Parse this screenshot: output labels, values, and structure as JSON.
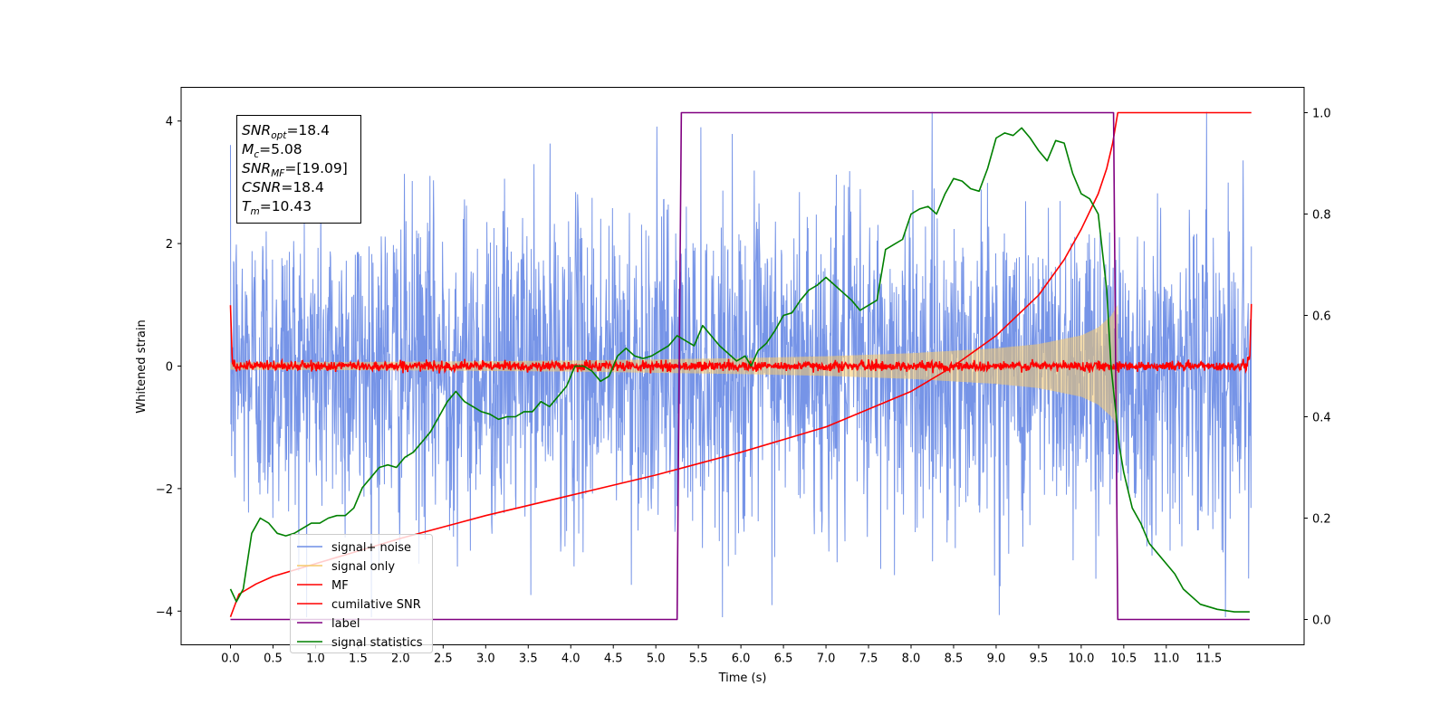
{
  "chart_data": {
    "type": "line",
    "xlabel": "Time (s)",
    "ylabel": "Whitened strain",
    "xlim": [
      -0.58,
      12.62
    ],
    "ylim": [
      -4.55,
      4.55
    ],
    "y2lim": [
      -0.05,
      1.05
    ],
    "x_ticks": [
      0.0,
      0.5,
      1.0,
      1.5,
      2.0,
      2.5,
      3.0,
      3.5,
      4.0,
      4.5,
      5.0,
      5.5,
      6.0,
      6.5,
      7.0,
      7.5,
      8.0,
      8.5,
      9.0,
      9.5,
      10.0,
      10.5,
      11.0,
      11.5
    ],
    "x_tick_labels": [
      "0.0",
      "0.5",
      "1.0",
      "1.5",
      "2.0",
      "2.5",
      "3.0",
      "3.5",
      "4.0",
      "4.5",
      "5.0",
      "5.5",
      "6.0",
      "6.5",
      "7.0",
      "7.5",
      "8.0",
      "8.5",
      "9.0",
      "9.5",
      "10.0",
      "10.5",
      "11.0",
      "11.5"
    ],
    "y_ticks": [
      -4,
      -2,
      0,
      2,
      4
    ],
    "y_tick_labels": [
      "−4",
      "−2",
      "0",
      "2",
      "4"
    ],
    "y2_ticks": [
      0.0,
      0.2,
      0.4,
      0.6,
      0.8,
      1.0
    ],
    "y2_tick_labels": [
      "0.0",
      "0.2",
      "0.4",
      "0.6",
      "0.8",
      "1.0"
    ],
    "legend_position": "lower-left",
    "grid": false,
    "annotation": [
      {
        "base": "SNR",
        "sub": "opt",
        "value": "=18.4"
      },
      {
        "base": "M",
        "sub": "c",
        "value": "=5.08"
      },
      {
        "base": "SNR",
        "sub": "MF",
        "value": "=[19.09]"
      },
      {
        "base": "CSNR",
        "sub": "",
        "value": "=18.4"
      },
      {
        "base": "T",
        "sub": "m",
        "value": "=10.43"
      }
    ],
    "series": [
      {
        "name": "signal+ noise",
        "axis": "left",
        "color": "#6f8ee6",
        "kind": "noise",
        "x_range": [
          0.0,
          12.0
        ],
        "amplitude_sigma": 1.0,
        "peak_range": [
          -4.1,
          4.15
        ]
      },
      {
        "name": "signal only",
        "axis": "left",
        "color": "#f5c96a",
        "kind": "chirp-envelope",
        "x": [
          0.0,
          2.0,
          4.0,
          6.0,
          7.0,
          8.0,
          9.0,
          9.5,
          10.0,
          10.2,
          10.35,
          10.43
        ],
        "envelope": [
          0.06,
          0.07,
          0.09,
          0.13,
          0.16,
          0.21,
          0.29,
          0.36,
          0.5,
          0.63,
          0.82,
          1.0
        ]
      },
      {
        "name": "MF",
        "axis": "left",
        "color": "#ff0000",
        "kind": "noisy-line",
        "x": [
          0.0,
          0.02,
          0.06,
          11.94,
          11.98,
          12.0
        ],
        "y": [
          1.0,
          0.15,
          0.0,
          0.0,
          0.15,
          0.95
        ]
      },
      {
        "name": "cumilative SNR",
        "axis": "right",
        "color": "#ff0000",
        "kind": "line",
        "x": [
          0.0,
          0.1,
          0.3,
          0.5,
          1.0,
          2.0,
          3.0,
          4.0,
          5.0,
          6.0,
          7.0,
          8.0,
          8.5,
          9.0,
          9.5,
          9.8,
          10.0,
          10.2,
          10.3,
          10.37,
          10.43,
          10.5,
          12.0
        ],
        "y": [
          0.005,
          0.05,
          0.07,
          0.085,
          0.11,
          0.16,
          0.205,
          0.245,
          0.285,
          0.33,
          0.38,
          0.45,
          0.5,
          0.56,
          0.64,
          0.71,
          0.77,
          0.84,
          0.89,
          0.94,
          1.0,
          1.0,
          1.0
        ]
      },
      {
        "name": "label",
        "axis": "right",
        "color": "#800080",
        "kind": "line",
        "x": [
          0.0,
          5.25,
          5.3,
          10.38,
          10.43,
          11.0,
          11.5,
          11.98
        ],
        "y": [
          0.0,
          0.0,
          1.0,
          1.0,
          0.0,
          0.0,
          0.0,
          0.0
        ]
      },
      {
        "name": "signal statistics",
        "axis": "right",
        "color": "#008000",
        "kind": "line",
        "x": [
          0.0,
          0.07,
          0.15,
          0.25,
          0.35,
          0.45,
          0.55,
          0.65,
          0.75,
          0.85,
          0.95,
          1.05,
          1.15,
          1.25,
          1.35,
          1.45,
          1.55,
          1.65,
          1.75,
          1.85,
          1.95,
          2.05,
          2.15,
          2.25,
          2.35,
          2.45,
          2.55,
          2.65,
          2.75,
          2.85,
          2.95,
          3.05,
          3.15,
          3.25,
          3.35,
          3.45,
          3.55,
          3.65,
          3.75,
          3.85,
          3.95,
          4.05,
          4.15,
          4.25,
          4.35,
          4.45,
          4.55,
          4.65,
          4.75,
          4.85,
          4.95,
          5.05,
          5.15,
          5.25,
          5.35,
          5.45,
          5.55,
          5.65,
          5.75,
          5.85,
          5.95,
          6.05,
          6.12,
          6.2,
          6.3,
          6.4,
          6.5,
          6.6,
          6.7,
          6.8,
          6.9,
          7.0,
          7.1,
          7.2,
          7.3,
          7.4,
          7.5,
          7.6,
          7.7,
          7.8,
          7.9,
          8.0,
          8.1,
          8.2,
          8.3,
          8.4,
          8.5,
          8.6,
          8.7,
          8.8,
          8.9,
          9.0,
          9.1,
          9.2,
          9.3,
          9.4,
          9.5,
          9.6,
          9.7,
          9.8,
          9.9,
          10.0,
          10.1,
          10.2,
          10.3,
          10.35,
          10.4,
          10.45,
          10.5,
          10.6,
          10.7,
          10.8,
          10.9,
          11.0,
          11.1,
          11.2,
          11.4,
          11.6,
          11.8,
          11.98
        ],
        "y": [
          0.06,
          0.035,
          0.06,
          0.17,
          0.2,
          0.19,
          0.17,
          0.165,
          0.17,
          0.18,
          0.19,
          0.19,
          0.2,
          0.205,
          0.205,
          0.22,
          0.26,
          0.28,
          0.3,
          0.305,
          0.3,
          0.32,
          0.33,
          0.35,
          0.37,
          0.4,
          0.43,
          0.45,
          0.43,
          0.42,
          0.41,
          0.405,
          0.395,
          0.4,
          0.4,
          0.41,
          0.41,
          0.43,
          0.42,
          0.44,
          0.46,
          0.5,
          0.5,
          0.49,
          0.47,
          0.48,
          0.52,
          0.535,
          0.52,
          0.515,
          0.52,
          0.53,
          0.54,
          0.56,
          0.55,
          0.54,
          0.58,
          0.56,
          0.54,
          0.525,
          0.51,
          0.52,
          0.5,
          0.53,
          0.545,
          0.57,
          0.6,
          0.605,
          0.63,
          0.65,
          0.66,
          0.675,
          0.66,
          0.645,
          0.63,
          0.61,
          0.62,
          0.63,
          0.73,
          0.74,
          0.75,
          0.8,
          0.81,
          0.815,
          0.8,
          0.84,
          0.87,
          0.865,
          0.85,
          0.845,
          0.89,
          0.95,
          0.96,
          0.955,
          0.97,
          0.95,
          0.925,
          0.905,
          0.945,
          0.94,
          0.88,
          0.84,
          0.83,
          0.8,
          0.65,
          0.5,
          0.42,
          0.34,
          0.29,
          0.22,
          0.19,
          0.15,
          0.13,
          0.11,
          0.09,
          0.06,
          0.03,
          0.02,
          0.015,
          0.015
        ]
      }
    ]
  }
}
